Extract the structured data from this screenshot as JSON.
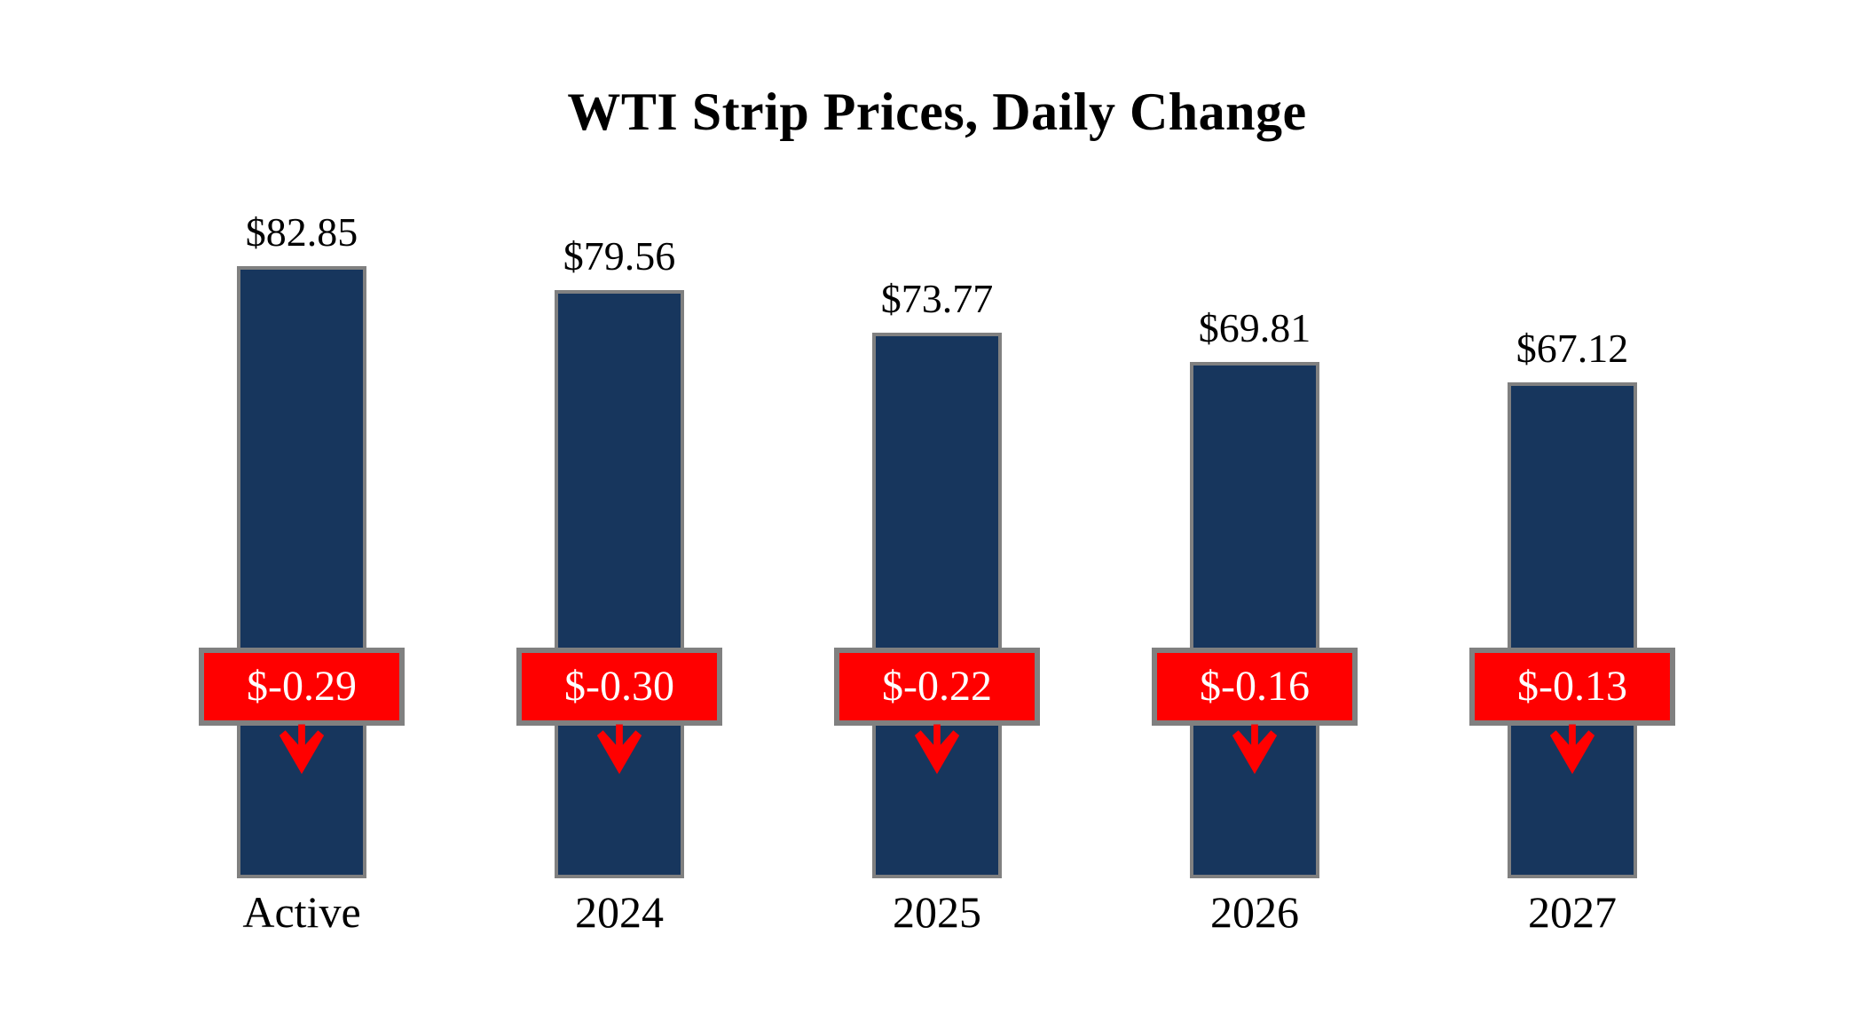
{
  "title": "WTI Strip Prices, Daily Change",
  "chart_data": {
    "type": "bar",
    "title": "WTI Strip Prices, Daily Change",
    "categories": [
      "Active",
      "2024",
      "2025",
      "2026",
      "2027"
    ],
    "series": [
      {
        "name": "Strip Price",
        "values": [
          82.85,
          79.56,
          73.77,
          69.81,
          67.12
        ]
      },
      {
        "name": "Daily Change",
        "values": [
          -0.29,
          -0.3,
          -0.22,
          -0.16,
          -0.13
        ]
      }
    ],
    "price_labels": [
      "$82.85",
      "$79.56",
      "$73.77",
      "$69.81",
      "$67.12"
    ],
    "change_labels": [
      "$-0.29",
      "$-0.30",
      "$-0.22",
      "$-0.16",
      "$-0.13"
    ],
    "ylim": [
      0,
      83
    ],
    "grid": false,
    "legend": "none",
    "colors": {
      "bar_fill": "#17365D",
      "bar_border": "#808080",
      "change_box_fill": "#FF0000",
      "change_box_border": "#808080",
      "change_text": "#FFFFFF",
      "arrow": "#FF0000",
      "title_text": "#000000",
      "label_text": "#000000",
      "background": "#FFFFFF"
    }
  }
}
